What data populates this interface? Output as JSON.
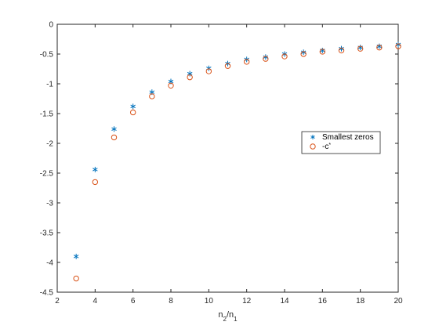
{
  "chart_data": {
    "type": "scatter",
    "title": "",
    "xlabel": {
      "main": "n",
      "sub1": "2",
      "sep": "/n",
      "sub2": "1"
    },
    "ylabel": "",
    "xlim": [
      2,
      20
    ],
    "ylim": [
      -4.5,
      0
    ],
    "xticks": [
      2,
      4,
      6,
      8,
      10,
      12,
      14,
      16,
      18,
      20
    ],
    "yticks": [
      0,
      -0.5,
      -1,
      -1.5,
      -2,
      -2.5,
      -3,
      -3.5,
      -4,
      -4.5
    ],
    "xtick_labels": [
      "2",
      "4",
      "6",
      "8",
      "10",
      "12",
      "14",
      "16",
      "18",
      "20"
    ],
    "ytick_labels": [
      "0",
      "-0.5",
      "-1",
      "-1.5",
      "-2",
      "-2.5",
      "-3",
      "-3.5",
      "-4",
      "-4.5"
    ],
    "grid": false,
    "legend_position": "right",
    "series": [
      {
        "name": "Smallest zeros",
        "marker": "asterisk",
        "color": "#0072BD",
        "x": [
          3,
          4,
          5,
          6,
          7,
          8,
          9,
          10,
          11,
          12,
          13,
          14,
          15,
          16,
          17,
          18,
          19,
          20
        ],
        "y": [
          -3.9,
          -2.44,
          -1.76,
          -1.38,
          -1.14,
          -0.96,
          -0.83,
          -0.74,
          -0.66,
          -0.59,
          -0.55,
          -0.5,
          -0.47,
          -0.44,
          -0.41,
          -0.39,
          -0.37,
          -0.34
        ]
      },
      {
        "name": "-c",
        "name_superscript": "*",
        "marker": "circle",
        "color": "#D95319",
        "x": [
          3,
          4,
          5,
          6,
          7,
          8,
          9,
          10,
          11,
          12,
          13,
          14,
          15,
          16,
          17,
          18,
          19,
          20
        ],
        "y": [
          -4.27,
          -2.65,
          -1.9,
          -1.48,
          -1.21,
          -1.03,
          -0.89,
          -0.79,
          -0.7,
          -0.63,
          -0.58,
          -0.54,
          -0.5,
          -0.46,
          -0.44,
          -0.41,
          -0.39,
          -0.37
        ]
      }
    ]
  }
}
